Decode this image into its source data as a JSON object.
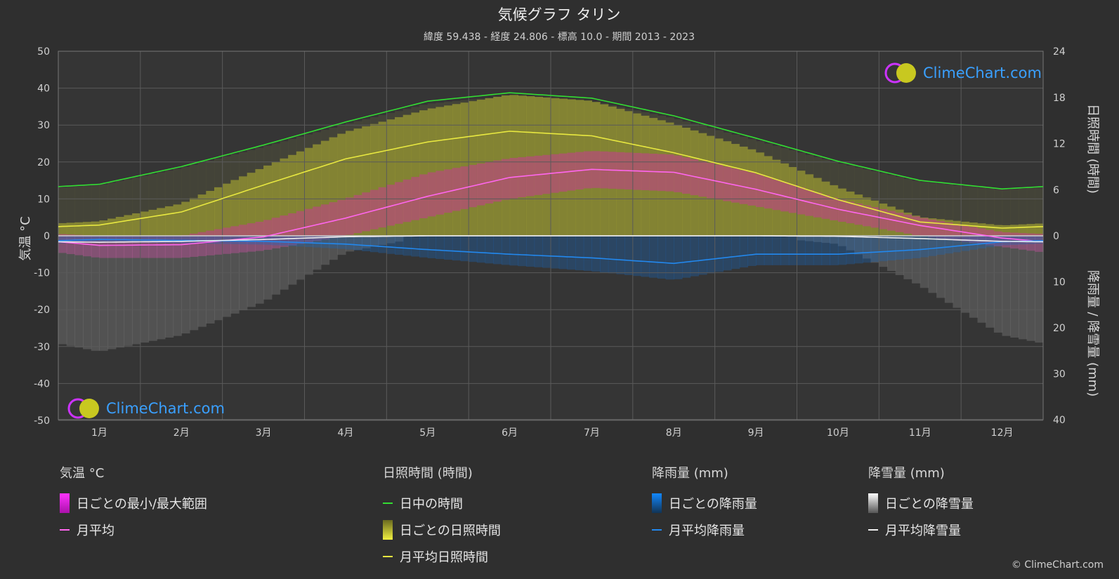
{
  "title": "気候グラフ タリン",
  "subtitle": "緯度 59.438 - 経度 24.806 - 標高 10.0 - 期間 2013 - 2023",
  "left_axis_label": "気温 °C",
  "right_axis_top_label": "日照時間 (時間)",
  "right_axis_bottom_label": "降雨量 / 降雪量 (mm)",
  "logo_text": "ClimeChart.com",
  "copyright": "© ClimeChart.com",
  "colors": {
    "daylight": "#33dd33",
    "sunshine_line": "#e8e840",
    "sunshine_fill": "#b8b830",
    "temp_line": "#ff66ee",
    "temp_fill": "#cc3399",
    "rain_line": "#2288ee",
    "rain_fill": "#1a66bb",
    "snow_line": "#eeeeee",
    "snow_fill": "#8a8a8a"
  },
  "legend": {
    "temperature": {
      "heading": "気温 °C",
      "range": "日ごとの最小/最大範囲",
      "mean": "月平均"
    },
    "sunshine": {
      "heading": "日照時間 (時間)",
      "daylight": "日中の時間",
      "daily": "日ごとの日照時間",
      "mean": "月平均日照時間"
    },
    "rain": {
      "heading": "降雨量 (mm)",
      "daily": "日ごとの降雨量",
      "mean": "月平均降雨量"
    },
    "snow": {
      "heading": "降雪量 (mm)",
      "daily": "日ごとの降雪量",
      "mean": "月平均降雪量"
    }
  },
  "chart_data": {
    "type": "line",
    "categories": [
      "1月",
      "2月",
      "3月",
      "4月",
      "5月",
      "6月",
      "7月",
      "8月",
      "9月",
      "10月",
      "11月",
      "12月"
    ],
    "left_axis": {
      "ticks": [
        50,
        40,
        30,
        20,
        10,
        0,
        -10,
        -20,
        -30,
        -40,
        -50
      ],
      "range": [
        -50,
        50
      ]
    },
    "right_axis_sunshine": {
      "ticks": [
        24,
        18,
        12,
        6,
        0
      ],
      "range": [
        0,
        24
      ]
    },
    "right_axis_precip": {
      "ticks": [
        10,
        20,
        30,
        40
      ],
      "range": [
        0,
        40
      ]
    },
    "grid": true,
    "series": [
      {
        "name": "日中の時間",
        "axis": "sunshine",
        "values": [
          6.7,
          9.0,
          11.8,
          14.8,
          17.5,
          18.6,
          17.9,
          15.6,
          12.7,
          9.7,
          7.2,
          6.1
        ]
      },
      {
        "name": "月平均日照時間",
        "axis": "sunshine",
        "values": [
          1.4,
          3.1,
          6.6,
          10.0,
          12.2,
          13.6,
          13.0,
          10.8,
          8.2,
          4.7,
          1.8,
          1.0
        ]
      },
      {
        "name": "月平均",
        "axis": "temperature",
        "values": [
          -2.6,
          -2.4,
          -0.3,
          4.8,
          10.7,
          15.8,
          18.0,
          17.2,
          12.6,
          7.2,
          2.8,
          -0.6
        ]
      },
      {
        "name": "月平均降雨量",
        "axis": "precip",
        "values": [
          0.8,
          1.0,
          1.2,
          1.8,
          3.0,
          4.0,
          4.8,
          6.0,
          4.0,
          4.0,
          3.0,
          1.3
        ]
      },
      {
        "name": "月平均降雪量",
        "axis": "precip",
        "values": [
          1.4,
          1.2,
          0.8,
          0.2,
          0.0,
          0.0,
          0.0,
          0.0,
          0.0,
          0.1,
          0.6,
          1.2
        ]
      },
      {
        "name": "日ごとの最小/最大範囲",
        "axis": "temperature",
        "min": [
          -6,
          -6,
          -4,
          0,
          5,
          10,
          13,
          12,
          8,
          4,
          0,
          -3
        ],
        "max": [
          0,
          0,
          4,
          10,
          17,
          21,
          23,
          22,
          17,
          10,
          5,
          1
        ]
      }
    ]
  }
}
